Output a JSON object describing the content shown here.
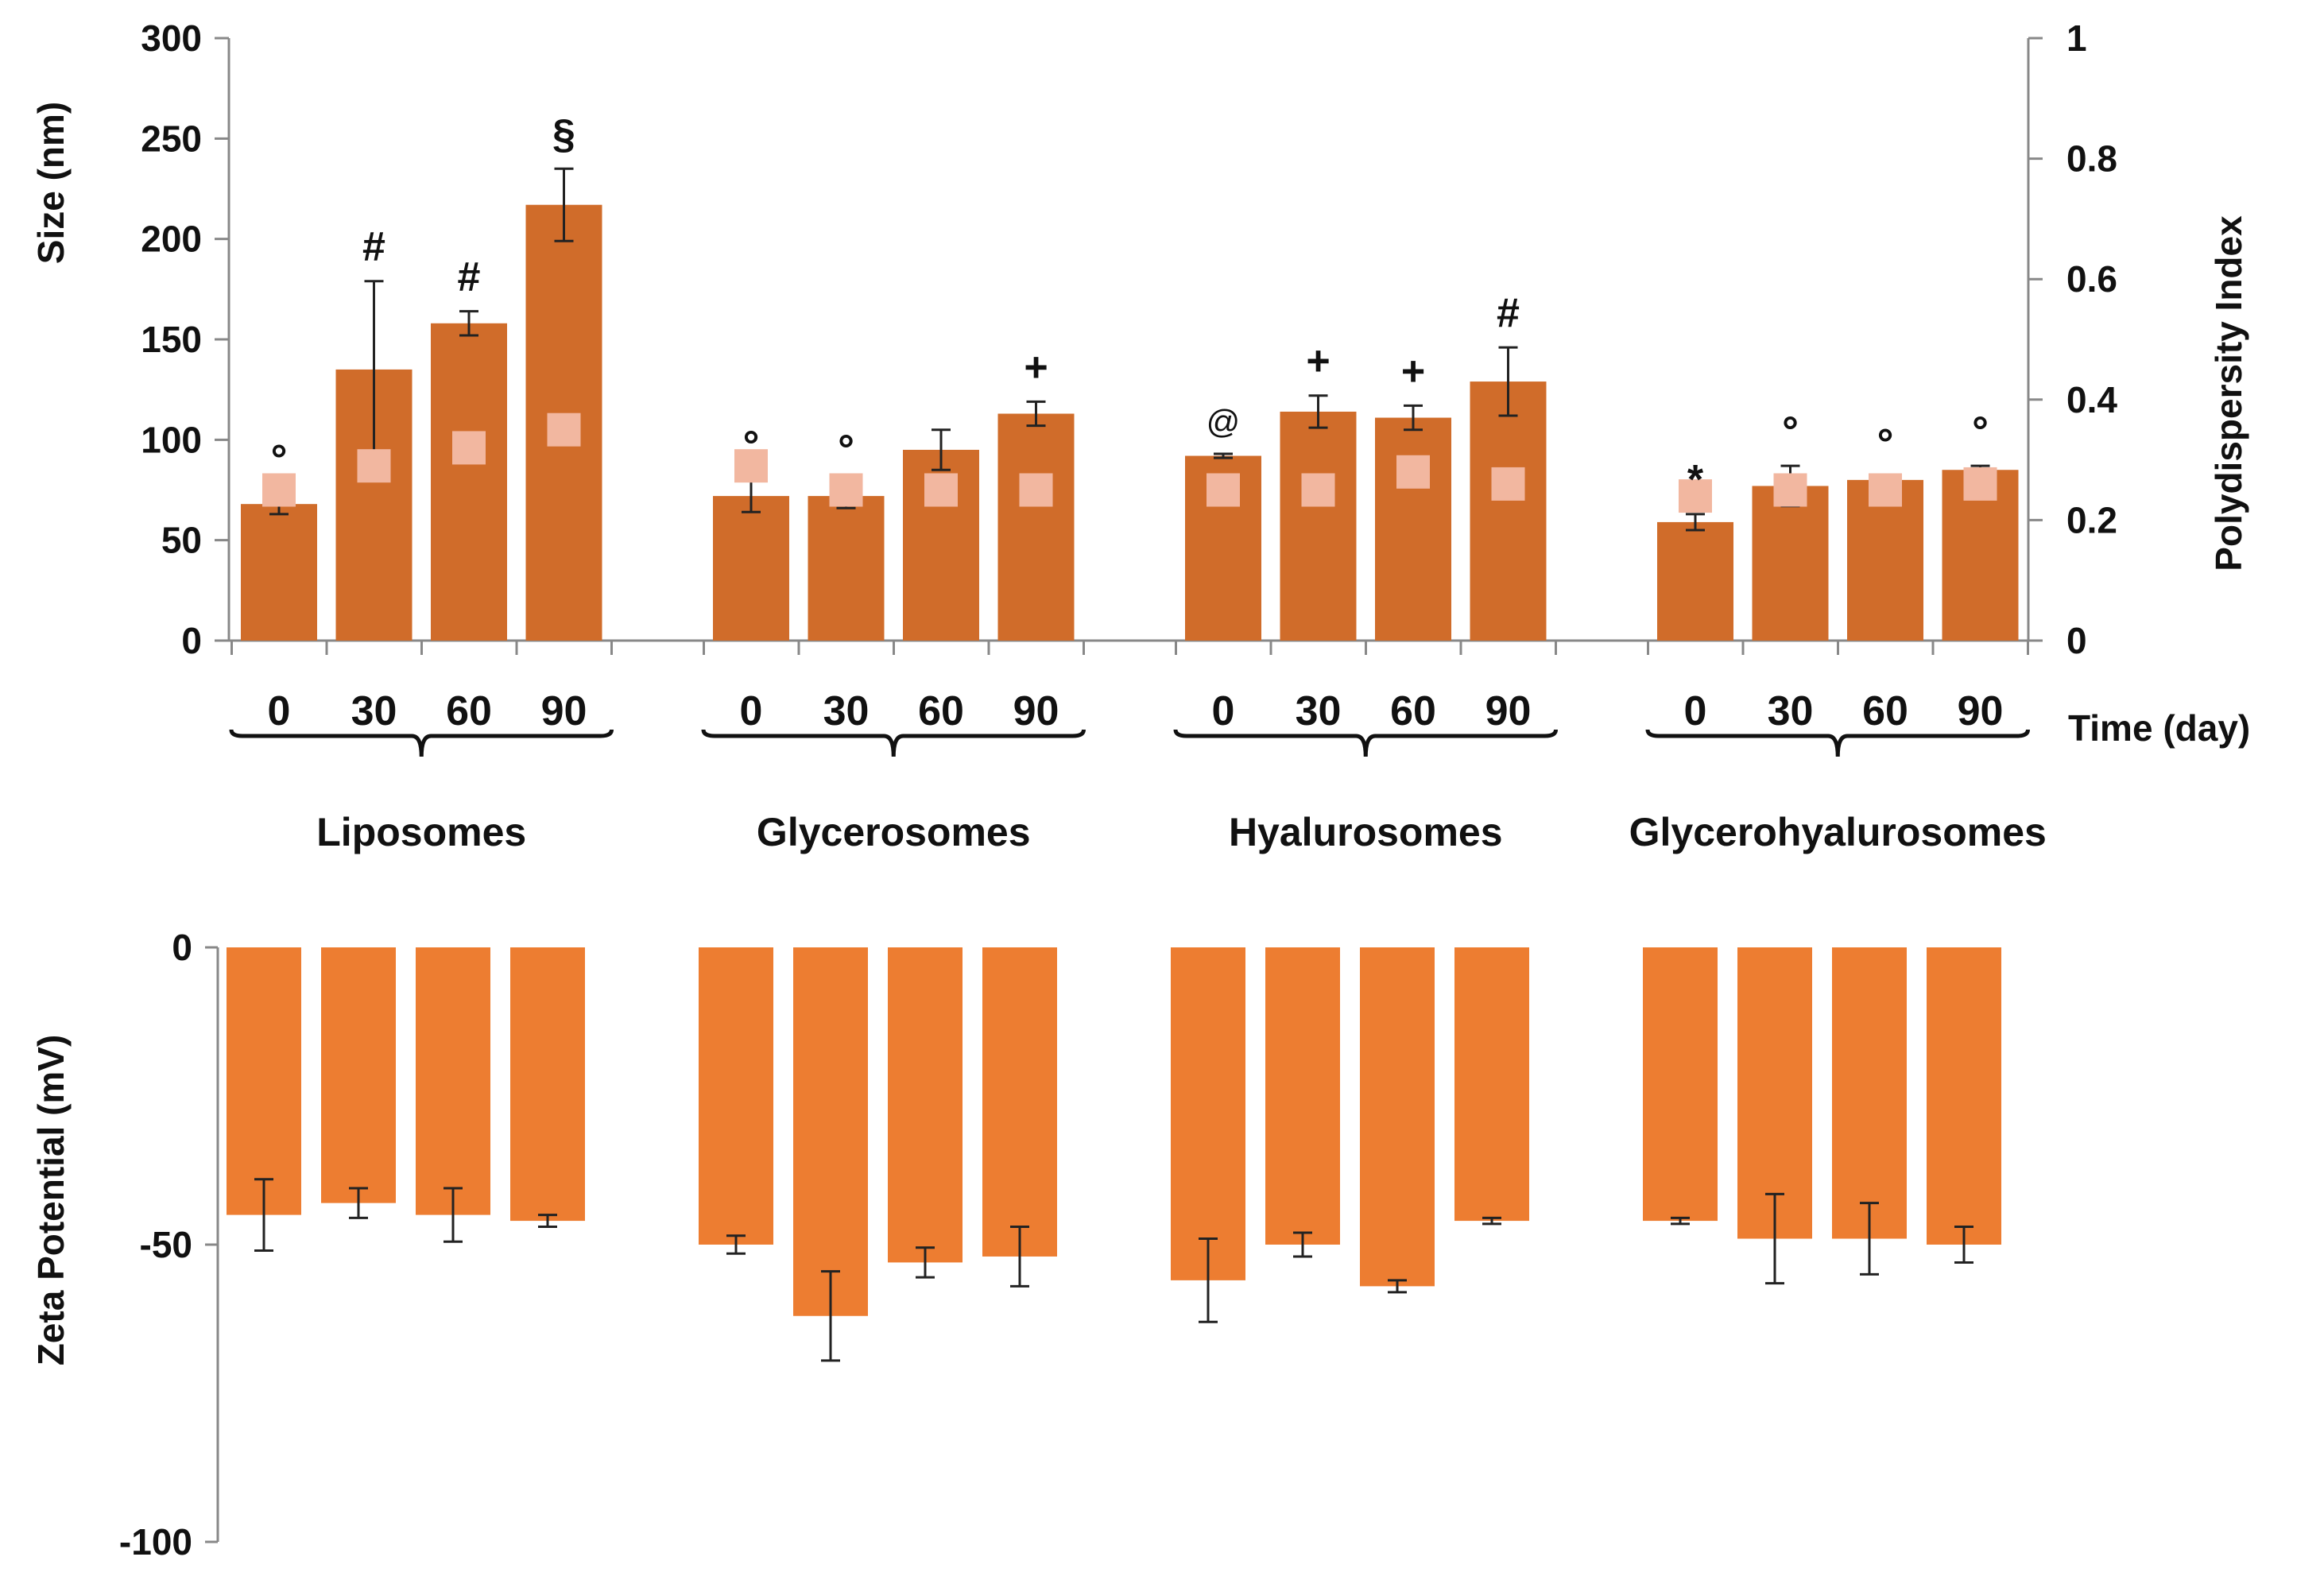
{
  "chart_data": [
    {
      "type": "bar",
      "title": "",
      "categories": [
        "0",
        "30",
        "60",
        "90"
      ],
      "groups": [
        "Liposomes",
        "Glycerosomes",
        "Hyalurosomes",
        "Glycerohyalurosomes"
      ],
      "xlabel": "Time (day)",
      "ylabel": "Size (nm)",
      "y2label": "Polydispersity Index",
      "ylim": [
        0,
        300
      ],
      "y2lim": [
        0,
        1
      ],
      "yticks": [
        "0",
        "50",
        "100",
        "150",
        "200",
        "250",
        "300"
      ],
      "y2ticks": [
        "0",
        "0.2",
        "0.4",
        "0.6",
        "0.8",
        "1"
      ],
      "colors": {
        "bar": "#d06c2a",
        "pdi": "#f2b7a0",
        "text": "#111111"
      },
      "series": [
        {
          "name": "Size (nm)",
          "groups": [
            {
              "values": [
                68,
                135,
                158,
                217
              ],
              "errors": [
                5,
                44,
                6,
                18
              ],
              "annotations": [
                "°",
                "#",
                "#",
                "§"
              ]
            },
            {
              "values": [
                72,
                72,
                95,
                113
              ],
              "errors": [
                8,
                6,
                10,
                6
              ],
              "annotations": [
                "°",
                "°",
                "",
                "+"
              ]
            },
            {
              "values": [
                92,
                114,
                111,
                129
              ],
              "errors": [
                1,
                8,
                6,
                17
              ],
              "annotations": [
                "@",
                "+",
                "+",
                "#"
              ]
            },
            {
              "values": [
                59,
                77,
                80,
                85
              ],
              "errors": [
                4,
                10,
                1,
                2
              ],
              "annotations": [
                "*",
                "°",
                "°",
                "°"
              ]
            }
          ]
        },
        {
          "name": "Polydispersity Index",
          "marker": "square",
          "groups": [
            {
              "values": [
                0.25,
                0.29,
                0.32,
                0.35
              ]
            },
            {
              "values": [
                0.29,
                0.25,
                0.25,
                0.25
              ]
            },
            {
              "values": [
                0.25,
                0.25,
                0.28,
                0.26
              ]
            },
            {
              "values": [
                0.24,
                0.25,
                0.25,
                0.26
              ]
            }
          ]
        }
      ]
    },
    {
      "type": "bar",
      "title": "",
      "categories": [
        "0",
        "30",
        "60",
        "90"
      ],
      "groups": [
        "Liposomes",
        "Glycerosomes",
        "Hyalurosomes",
        "Glycerohyalurosomes"
      ],
      "ylabel": "Zeta Potential  (mV)",
      "ylim": [
        -100,
        0
      ],
      "yticks": [
        "0",
        "-50",
        "-100"
      ],
      "colors": {
        "bar": "#ed7d31"
      },
      "series": [
        {
          "name": "Zeta Potential (mV)",
          "groups": [
            {
              "values": [
                -45,
                -43,
                -45,
                -46
              ],
              "errors": [
                6,
                2.5,
                4.5,
                1
              ]
            },
            {
              "values": [
                -50,
                -62,
                -53,
                -52
              ],
              "errors": [
                1.5,
                7.5,
                2.5,
                5
              ]
            },
            {
              "values": [
                -56,
                -50,
                -57,
                -46
              ],
              "errors": [
                7,
                2,
                1,
                0.5
              ]
            },
            {
              "values": [
                -46,
                -49,
                -49,
                -50
              ],
              "errors": [
                0.5,
                7.5,
                6,
                3
              ]
            }
          ]
        }
      ]
    }
  ]
}
